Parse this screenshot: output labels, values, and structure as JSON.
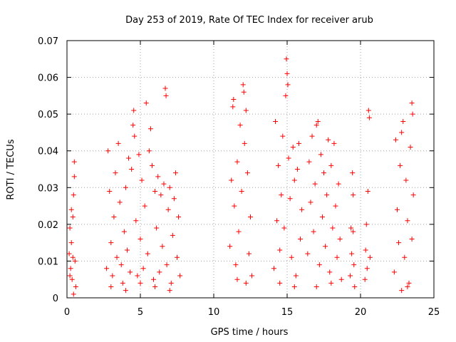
{
  "chart_data": {
    "type": "scatter",
    "title": "Day 253 of 2019, Rate Of TEC Index for receiver arub",
    "xlabel": "GPS time / hours",
    "ylabel": "ROTI / TECUs",
    "xlim": [
      0,
      25
    ],
    "ylim": [
      0,
      0.07
    ],
    "xticks": [
      0,
      5,
      10,
      15,
      20,
      25
    ],
    "xtick_labels": [
      "0",
      "5",
      "10",
      "15",
      "20",
      "25"
    ],
    "yticks": [
      0,
      0.01,
      0.02,
      0.03,
      0.04,
      0.05,
      0.06,
      0.07
    ],
    "ytick_labels": [
      "0",
      "0.01",
      "0.02",
      "0.03",
      "0.04",
      "0.05",
      "0.06",
      "0.07"
    ],
    "grid": true,
    "marker": "+",
    "color": "#ff0000",
    "series": [
      {
        "points": [
          [
            0.15,
            0.012
          ],
          [
            0.2,
            0.019
          ],
          [
            0.25,
            0.008
          ],
          [
            0.3,
            0.015
          ],
          [
            0.35,
            0.005
          ],
          [
            0.4,
            0.022
          ],
          [
            0.45,
            0.028
          ],
          [
            0.5,
            0.033
          ],
          [
            0.5,
            0.037
          ],
          [
            0.55,
            0.01
          ],
          [
            0.6,
            0.003
          ],
          [
            0.45,
            0.001
          ],
          [
            0.3,
            0.024
          ],
          [
            0.4,
            0.011
          ],
          [
            0.2,
            0.006
          ],
          [
            2.7,
            0.008
          ],
          [
            2.8,
            0.04
          ],
          [
            2.9,
            0.029
          ],
          [
            3.0,
            0.015
          ],
          [
            3.1,
            0.006
          ],
          [
            3.2,
            0.022
          ],
          [
            3.3,
            0.034
          ],
          [
            3.4,
            0.011
          ],
          [
            3.5,
            0.042
          ],
          [
            3.6,
            0.026
          ],
          [
            3.7,
            0.009
          ],
          [
            3.8,
            0.004
          ],
          [
            3.9,
            0.018
          ],
          [
            4.0,
            0.03
          ],
          [
            4.1,
            0.013
          ],
          [
            4.2,
            0.038
          ],
          [
            4.3,
            0.007
          ],
          [
            4.4,
            0.035
          ],
          [
            4.5,
            0.047
          ],
          [
            4.55,
            0.051
          ],
          [
            4.6,
            0.044
          ],
          [
            4.7,
            0.021
          ],
          [
            4.8,
            0.006
          ],
          [
            4.9,
            0.039
          ],
          [
            5.0,
            0.016
          ],
          [
            5.1,
            0.032
          ],
          [
            5.2,
            0.008
          ],
          [
            5.3,
            0.025
          ],
          [
            5.4,
            0.053
          ],
          [
            5.5,
            0.012
          ],
          [
            5.6,
            0.04
          ],
          [
            5.7,
            0.046
          ],
          [
            5.8,
            0.036
          ],
          [
            5.9,
            0.005
          ],
          [
            6.0,
            0.029
          ],
          [
            6.1,
            0.019
          ],
          [
            6.2,
            0.033
          ],
          [
            6.3,
            0.007
          ],
          [
            6.4,
            0.028
          ],
          [
            6.5,
            0.014
          ],
          [
            6.6,
            0.031
          ],
          [
            6.7,
            0.057
          ],
          [
            6.75,
            0.055
          ],
          [
            6.8,
            0.009
          ],
          [
            6.9,
            0.024
          ],
          [
            7.0,
            0.03
          ],
          [
            7.1,
            0.004
          ],
          [
            7.2,
            0.017
          ],
          [
            7.3,
            0.027
          ],
          [
            7.4,
            0.034
          ],
          [
            7.5,
            0.011
          ],
          [
            7.6,
            0.022
          ],
          [
            7.7,
            0.006
          ],
          [
            3.0,
            0.003
          ],
          [
            4.0,
            0.002
          ],
          [
            5.0,
            0.004
          ],
          [
            6.0,
            0.003
          ],
          [
            7.0,
            0.002
          ],
          [
            11.1,
            0.014
          ],
          [
            11.2,
            0.032
          ],
          [
            11.3,
            0.052
          ],
          [
            11.35,
            0.054
          ],
          [
            11.4,
            0.025
          ],
          [
            11.5,
            0.009
          ],
          [
            11.6,
            0.037
          ],
          [
            11.7,
            0.018
          ],
          [
            11.8,
            0.047
          ],
          [
            11.9,
            0.029
          ],
          [
            12.0,
            0.058
          ],
          [
            12.05,
            0.056
          ],
          [
            12.1,
            0.042
          ],
          [
            12.2,
            0.051
          ],
          [
            12.3,
            0.034
          ],
          [
            12.4,
            0.012
          ],
          [
            12.5,
            0.022
          ],
          [
            12.6,
            0.006
          ],
          [
            11.6,
            0.005
          ],
          [
            12.2,
            0.004
          ],
          [
            14.1,
            0.008
          ],
          [
            14.2,
            0.048
          ],
          [
            14.3,
            0.021
          ],
          [
            14.4,
            0.036
          ],
          [
            14.5,
            0.013
          ],
          [
            14.6,
            0.028
          ],
          [
            14.7,
            0.044
          ],
          [
            14.8,
            0.019
          ],
          [
            14.9,
            0.055
          ],
          [
            14.95,
            0.065
          ],
          [
            15.0,
            0.061
          ],
          [
            15.05,
            0.058
          ],
          [
            15.1,
            0.038
          ],
          [
            15.2,
            0.027
          ],
          [
            15.3,
            0.011
          ],
          [
            15.4,
            0.041
          ],
          [
            15.5,
            0.032
          ],
          [
            15.6,
            0.006
          ],
          [
            15.7,
            0.035
          ],
          [
            15.8,
            0.042
          ],
          [
            15.9,
            0.016
          ],
          [
            16.0,
            0.024
          ],
          [
            14.5,
            0.004
          ],
          [
            15.5,
            0.003
          ],
          [
            16.4,
            0.012
          ],
          [
            16.5,
            0.037
          ],
          [
            16.6,
            0.026
          ],
          [
            16.7,
            0.044
          ],
          [
            16.8,
            0.018
          ],
          [
            16.9,
            0.031
          ],
          [
            17.0,
            0.047
          ],
          [
            17.1,
            0.048
          ],
          [
            17.2,
            0.009
          ],
          [
            17.3,
            0.039
          ],
          [
            17.4,
            0.022
          ],
          [
            17.5,
            0.034
          ],
          [
            17.6,
            0.014
          ],
          [
            17.7,
            0.028
          ],
          [
            17.8,
            0.043
          ],
          [
            17.9,
            0.007
          ],
          [
            18.0,
            0.036
          ],
          [
            18.1,
            0.019
          ],
          [
            18.2,
            0.042
          ],
          [
            18.3,
            0.025
          ],
          [
            18.4,
            0.011
          ],
          [
            18.5,
            0.031
          ],
          [
            18.6,
            0.016
          ],
          [
            18.7,
            0.005
          ],
          [
            17.0,
            0.003
          ],
          [
            18.0,
            0.004
          ],
          [
            19.3,
            0.006
          ],
          [
            19.35,
            0.019
          ],
          [
            19.4,
            0.012
          ],
          [
            19.45,
            0.034
          ],
          [
            19.5,
            0.028
          ],
          [
            19.55,
            0.009
          ],
          [
            19.6,
            0.003
          ],
          [
            19.5,
            0.018
          ],
          [
            20.3,
            0.005
          ],
          [
            20.35,
            0.013
          ],
          [
            20.4,
            0.02
          ],
          [
            20.45,
            0.008
          ],
          [
            20.5,
            0.029
          ],
          [
            20.55,
            0.051
          ],
          [
            20.6,
            0.049
          ],
          [
            20.65,
            0.011
          ],
          [
            22.3,
            0.007
          ],
          [
            22.4,
            0.043
          ],
          [
            22.5,
            0.024
          ],
          [
            22.6,
            0.015
          ],
          [
            22.7,
            0.036
          ],
          [
            22.8,
            0.045
          ],
          [
            22.9,
            0.048
          ],
          [
            23.0,
            0.011
          ],
          [
            23.1,
            0.032
          ],
          [
            23.2,
            0.021
          ],
          [
            23.3,
            0.004
          ],
          [
            23.4,
            0.041
          ],
          [
            23.5,
            0.053
          ],
          [
            23.55,
            0.05
          ],
          [
            23.6,
            0.028
          ],
          [
            22.8,
            0.002
          ],
          [
            23.2,
            0.003
          ],
          [
            23.5,
            0.016
          ]
        ]
      }
    ]
  }
}
